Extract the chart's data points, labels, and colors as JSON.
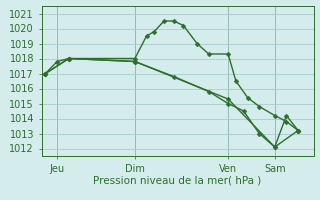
{
  "xlabel": "Pression niveau de la mer( hPa )",
  "bg_color": "#d4ecec",
  "grid_color": "#aacccc",
  "line_color": "#2d6e2d",
  "ylim": [
    1011.5,
    1021.5
  ],
  "yticks": [
    1012,
    1013,
    1014,
    1015,
    1016,
    1017,
    1018,
    1019,
    1020,
    1021
  ],
  "xlim": [
    0,
    140
  ],
  "xtick_labels": [
    "Jeu",
    "Dim",
    "Ven",
    "Sam"
  ],
  "xtick_positions": [
    8,
    48,
    96,
    120
  ],
  "vline_positions": [
    8,
    48,
    96,
    120
  ],
  "series1_x": [
    2,
    8,
    14,
    48,
    54,
    58,
    63,
    68,
    73,
    80,
    86,
    96,
    100,
    106,
    112,
    120,
    126,
    132
  ],
  "series1_y": [
    1017.0,
    1017.8,
    1018.0,
    1018.0,
    1019.5,
    1019.8,
    1020.5,
    1020.5,
    1020.2,
    1019.0,
    1018.3,
    1018.3,
    1016.5,
    1015.4,
    1014.8,
    1014.2,
    1013.8,
    1013.2
  ],
  "series2_x": [
    2,
    14,
    48,
    96,
    120,
    132
  ],
  "series2_y": [
    1017.0,
    1018.0,
    1017.8,
    1015.3,
    1012.1,
    1013.2
  ],
  "series3_x": [
    2,
    14,
    48,
    68,
    86,
    96,
    104,
    112,
    120,
    126,
    132
  ],
  "series3_y": [
    1017.0,
    1018.0,
    1017.8,
    1016.8,
    1015.8,
    1015.0,
    1014.5,
    1013.0,
    1012.1,
    1014.2,
    1013.2
  ],
  "marker_size": 2.5,
  "line_width": 1.0,
  "tick_label_size": 7,
  "xlabel_size": 7.5
}
